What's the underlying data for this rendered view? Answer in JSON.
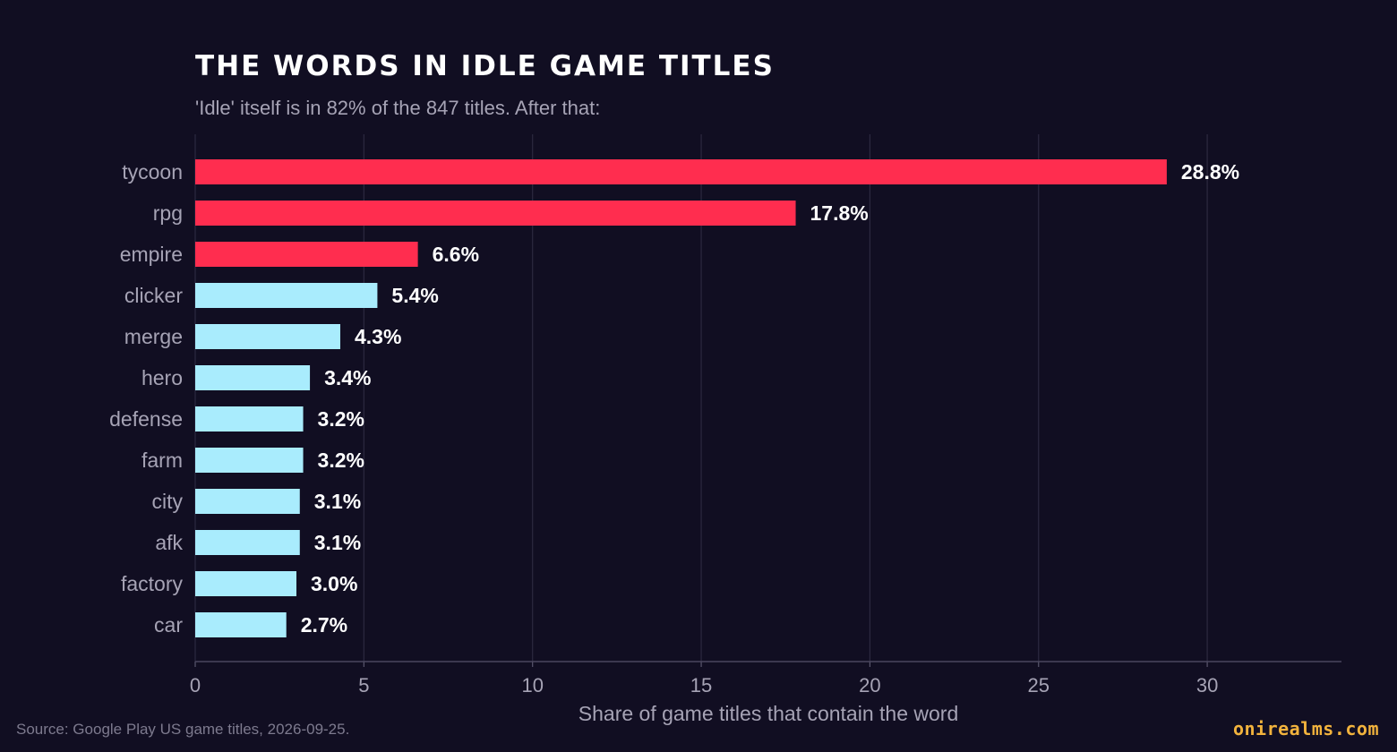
{
  "header": {
    "title": "THE WORDS IN IDLE GAME TITLES",
    "subtitle": "'Idle' itself is in 82% of the 847 titles. After that:"
  },
  "footer": {
    "source": "Source: Google Play US game titles, 2026-09-25.",
    "brand": "onirealms.com"
  },
  "colors": {
    "background": "#110e22",
    "highlight": "#ff2d4f",
    "base": "#a9ecfd",
    "grid": "#2c2940",
    "text": "#ffffff",
    "muted": "#a6a3b5"
  },
  "chart_data": {
    "type": "bar",
    "orientation": "horizontal",
    "categories": [
      "tycoon",
      "rpg",
      "empire",
      "clicker",
      "merge",
      "hero",
      "defense",
      "farm",
      "city",
      "afk",
      "factory",
      "car"
    ],
    "values": [
      28.8,
      17.8,
      6.6,
      5.4,
      4.3,
      3.4,
      3.2,
      3.2,
      3.1,
      3.1,
      3.0,
      2.7
    ],
    "data_labels": [
      "28.8%",
      "17.8%",
      "6.6%",
      "5.4%",
      "4.3%",
      "3.4%",
      "3.2%",
      "3.2%",
      "3.1%",
      "3.1%",
      "3.0%",
      "2.7%"
    ],
    "highlighted_count": 3,
    "xlabel": "Share of game titles that contain the word",
    "ylabel": "",
    "xticks": [
      0,
      5,
      10,
      15,
      20,
      25,
      30
    ],
    "xlim": [
      0,
      34
    ],
    "grid": "vertical"
  }
}
